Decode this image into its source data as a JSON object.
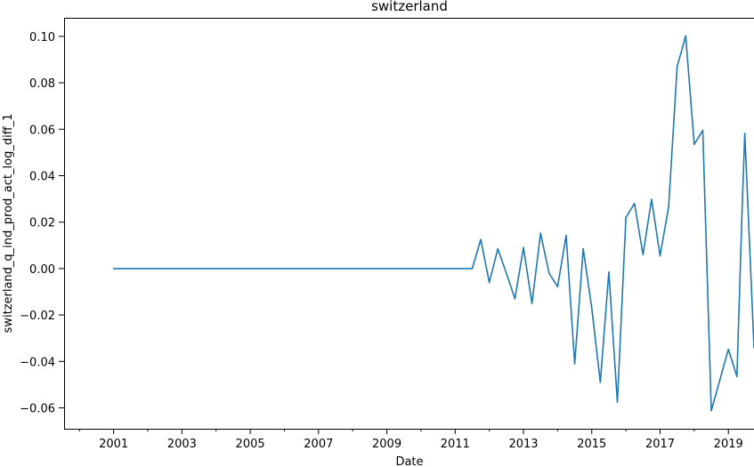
{
  "chart_data": {
    "type": "line",
    "title": "switzerland",
    "xlabel": "Date",
    "ylabel": "switzerland_q_ind_prod_act_log_diff_1",
    "xlim": [
      1999.55,
      2019.75
    ],
    "ylim": [
      -0.069,
      0.108
    ],
    "x_ticks": [
      {
        "value": 2001,
        "label": "2001"
      },
      {
        "value": 2003,
        "label": "2003"
      },
      {
        "value": 2005,
        "label": "2005"
      },
      {
        "value": 2007,
        "label": "2007"
      },
      {
        "value": 2009,
        "label": "2009"
      },
      {
        "value": 2011,
        "label": "2011"
      },
      {
        "value": 2013,
        "label": "2013"
      },
      {
        "value": 2015,
        "label": "2015"
      },
      {
        "value": 2017,
        "label": "2017"
      },
      {
        "value": 2019,
        "label": "2019"
      }
    ],
    "x_minor_ticks": [
      2000,
      2002,
      2004,
      2006,
      2008,
      2010,
      2012,
      2014,
      2016,
      2018
    ],
    "y_ticks": [
      {
        "value": -0.06,
        "label": "−0.06"
      },
      {
        "value": -0.04,
        "label": "−0.04"
      },
      {
        "value": -0.02,
        "label": "−0.02"
      },
      {
        "value": 0.0,
        "label": "0.00"
      },
      {
        "value": 0.02,
        "label": "0.02"
      },
      {
        "value": 0.04,
        "label": "0.04"
      },
      {
        "value": 0.06,
        "label": "0.06"
      },
      {
        "value": 0.08,
        "label": "0.08"
      },
      {
        "value": 0.1,
        "label": "0.10"
      }
    ],
    "grid": false,
    "series": [
      {
        "color": "#1f77b4",
        "points": [
          {
            "x": 2001.0,
            "y": 0.0
          },
          {
            "x": 2011.5,
            "y": 0.0
          },
          {
            "x": 2011.75,
            "y": 0.0125
          },
          {
            "x": 2012.0,
            "y": -0.006
          },
          {
            "x": 2012.25,
            "y": 0.0085
          },
          {
            "x": 2012.5,
            "y": -0.002
          },
          {
            "x": 2012.75,
            "y": -0.013
          },
          {
            "x": 2013.0,
            "y": 0.009
          },
          {
            "x": 2013.25,
            "y": -0.015
          },
          {
            "x": 2013.5,
            "y": 0.0152
          },
          {
            "x": 2013.75,
            "y": -0.002
          },
          {
            "x": 2014.0,
            "y": -0.0078
          },
          {
            "x": 2014.25,
            "y": 0.0142
          },
          {
            "x": 2014.5,
            "y": -0.041
          },
          {
            "x": 2014.75,
            "y": 0.0085
          },
          {
            "x": 2015.0,
            "y": -0.017
          },
          {
            "x": 2015.25,
            "y": -0.049
          },
          {
            "x": 2015.5,
            "y": -0.0015
          },
          {
            "x": 2015.75,
            "y": -0.0575
          },
          {
            "x": 2016.0,
            "y": 0.022
          },
          {
            "x": 2016.25,
            "y": 0.028
          },
          {
            "x": 2016.5,
            "y": 0.006
          },
          {
            "x": 2016.75,
            "y": 0.0298
          },
          {
            "x": 2017.0,
            "y": 0.0055
          },
          {
            "x": 2017.25,
            "y": 0.0265
          },
          {
            "x": 2017.5,
            "y": 0.087
          },
          {
            "x": 2017.75,
            "y": 0.1002
          },
          {
            "x": 2018.0,
            "y": 0.0535
          },
          {
            "x": 2018.25,
            "y": 0.0595
          },
          {
            "x": 2018.5,
            "y": -0.0612
          },
          {
            "x": 2018.75,
            "y": -0.048
          },
          {
            "x": 2019.0,
            "y": -0.0348
          },
          {
            "x": 2019.25,
            "y": -0.0465
          },
          {
            "x": 2019.4,
            "y": 0.0245
          },
          {
            "x": 2019.48,
            "y": 0.0582
          },
          {
            "x": 2019.75,
            "y": -0.034
          }
        ]
      }
    ]
  }
}
